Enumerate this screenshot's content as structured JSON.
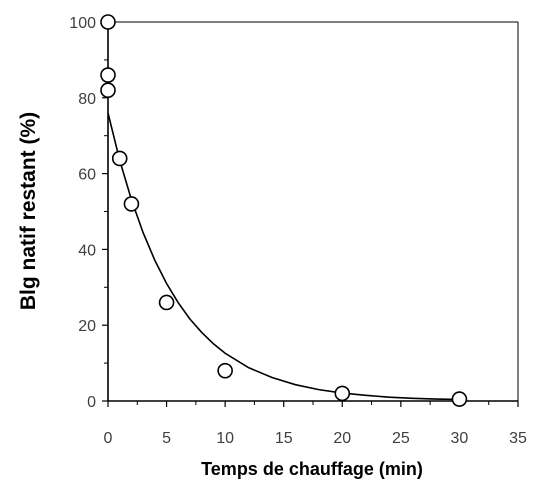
{
  "chart_data": {
    "type": "scatter",
    "title": "",
    "xlabel": "Temps de chauffage (min)",
    "ylabel": "Blg natif restant (%)",
    "xlim": [
      0,
      35
    ],
    "ylim": [
      0,
      100
    ],
    "x_ticks": [
      0,
      5,
      10,
      15,
      20,
      25,
      30,
      35
    ],
    "y_ticks": [
      0,
      20,
      40,
      60,
      80,
      100
    ],
    "grid": false,
    "legend": "none",
    "series": [
      {
        "kind": "scatter",
        "marker": "open-circle",
        "x": [
          0,
          0,
          0,
          1,
          2,
          5,
          10,
          20,
          30
        ],
        "y": [
          100,
          86,
          82,
          64,
          52,
          26,
          8,
          2,
          0.5
        ]
      },
      {
        "kind": "fit-line",
        "model": "exponential decay",
        "x": [
          0,
          1,
          2,
          3,
          4,
          5,
          6,
          7,
          8,
          9,
          10,
          12,
          14,
          16,
          18,
          20,
          22,
          24,
          26,
          28,
          30
        ],
        "y": [
          76,
          63.5,
          53.1,
          44.4,
          37.1,
          31.0,
          25.9,
          21.6,
          18.1,
          15.1,
          12.6,
          8.8,
          6.2,
          4.3,
          3.0,
          2.1,
          1.5,
          1.0,
          0.7,
          0.5,
          0.4
        ]
      }
    ],
    "colors": {
      "axes": "#000000",
      "ticks": "#404040",
      "markers": "#000000",
      "line": "#000000"
    }
  }
}
